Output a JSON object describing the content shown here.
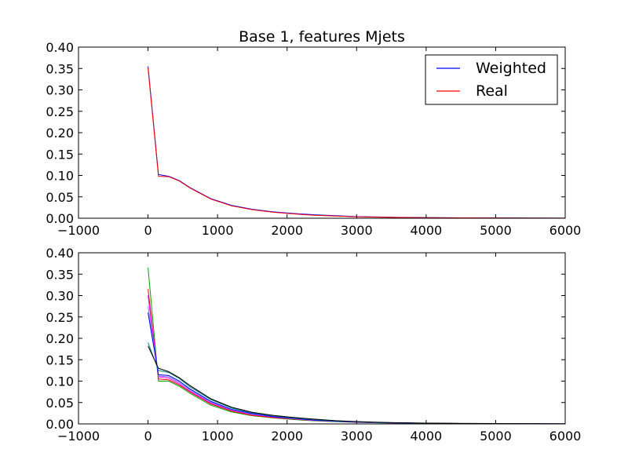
{
  "chart_data": [
    {
      "type": "line",
      "title": "Base 1, features Mjets",
      "xlabel": "",
      "ylabel": "",
      "xlim": [
        -1000,
        6000
      ],
      "ylim": [
        0,
        0.4
      ],
      "xticks": [
        -1000,
        0,
        1000,
        2000,
        3000,
        4000,
        5000,
        6000
      ],
      "xtick_labels": [
        "−1000",
        "0",
        "1000",
        "2000",
        "3000",
        "4000",
        "5000",
        "6000"
      ],
      "yticks": [
        0,
        0.05,
        0.1,
        0.15,
        0.2,
        0.25,
        0.3,
        0.35,
        0.4
      ],
      "ytick_labels": [
        "0.00",
        "0.05",
        "0.10",
        "0.15",
        "0.20",
        "0.25",
        "0.30",
        "0.35",
        "0.40"
      ],
      "grid": false,
      "legend": {
        "position": "top-right",
        "entries": [
          {
            "label": "Weighted",
            "color": "#0000ff"
          },
          {
            "label": "Real",
            "color": "#ff0000"
          }
        ]
      },
      "series": [
        {
          "name": "Weighted",
          "color": "#0000ff",
          "x": [
            0,
            150,
            300,
            450,
            600,
            900,
            1200,
            1500,
            1800,
            2100,
            2400,
            2700,
            3000,
            3300,
            3600,
            4000,
            4500,
            5000,
            5500,
            6000
          ],
          "y": [
            0.355,
            0.102,
            0.098,
            0.088,
            0.072,
            0.046,
            0.03,
            0.021,
            0.015,
            0.011,
            0.008,
            0.006,
            0.004,
            0.003,
            0.002,
            0.0015,
            0.001,
            0.0007,
            0.0005,
            0.0003
          ]
        },
        {
          "name": "Real",
          "color": "#ff0000",
          "x": [
            0,
            150,
            300,
            450,
            600,
            900,
            1200,
            1500,
            1800,
            2100,
            2400,
            2700,
            3000,
            3300,
            3600,
            4000,
            4500,
            5000,
            5500,
            6000
          ],
          "y": [
            0.351,
            0.098,
            0.097,
            0.087,
            0.071,
            0.045,
            0.029,
            0.02,
            0.014,
            0.01,
            0.007,
            0.005,
            0.0035,
            0.0025,
            0.0018,
            0.0012,
            0.0008,
            0.0006,
            0.0004,
            0.0002
          ]
        }
      ]
    },
    {
      "type": "line",
      "title": "",
      "xlabel": "",
      "ylabel": "",
      "xlim": [
        -1000,
        6000
      ],
      "ylim": [
        0,
        0.4
      ],
      "xticks": [
        -1000,
        0,
        1000,
        2000,
        3000,
        4000,
        5000,
        6000
      ],
      "xtick_labels": [
        "−1000",
        "0",
        "1000",
        "2000",
        "3000",
        "4000",
        "5000",
        "6000"
      ],
      "yticks": [
        0,
        0.05,
        0.1,
        0.15,
        0.2,
        0.25,
        0.3,
        0.35,
        0.4
      ],
      "ytick_labels": [
        "0.00",
        "0.05",
        "0.10",
        "0.15",
        "0.20",
        "0.25",
        "0.30",
        "0.35",
        "0.40"
      ],
      "grid": false,
      "series": [
        {
          "color": "#00a000",
          "x": [
            0,
            150,
            300,
            450,
            600,
            900,
            1200,
            1500,
            1800,
            2100,
            2400,
            2700,
            3000,
            3300,
            3600,
            4000,
            4500,
            5000,
            5500,
            6000
          ],
          "y": [
            0.365,
            0.1,
            0.1,
            0.088,
            0.072,
            0.044,
            0.028,
            0.019,
            0.014,
            0.01,
            0.007,
            0.005,
            0.0035,
            0.0025,
            0.0018,
            0.0012,
            0.0008,
            0.0006,
            0.0004,
            0.0002
          ]
        },
        {
          "color": "#ff0000",
          "x": [
            0,
            150,
            300,
            450,
            600,
            900,
            1200,
            1500,
            1800,
            2100,
            2400,
            2700,
            3000,
            3300,
            3600,
            4000,
            4500,
            5000,
            5500,
            6000
          ],
          "y": [
            0.315,
            0.105,
            0.103,
            0.091,
            0.075,
            0.047,
            0.03,
            0.02,
            0.015,
            0.011,
            0.008,
            0.006,
            0.004,
            0.003,
            0.002,
            0.0014,
            0.0009,
            0.0006,
            0.0004,
            0.0002
          ]
        },
        {
          "color": "#ff00ff",
          "x": [
            0,
            150,
            300,
            450,
            600,
            900,
            1200,
            1500,
            1800,
            2100,
            2400,
            2700,
            3000,
            3300,
            3600,
            4000,
            4500,
            5000,
            5500,
            6000
          ],
          "y": [
            0.3,
            0.11,
            0.107,
            0.094,
            0.077,
            0.049,
            0.032,
            0.022,
            0.016,
            0.012,
            0.008,
            0.006,
            0.004,
            0.003,
            0.002,
            0.0014,
            0.0009,
            0.0006,
            0.0004,
            0.0002
          ]
        },
        {
          "color": "#8080ff",
          "x": [
            0,
            150,
            300,
            450,
            600,
            900,
            1200,
            1500,
            1800,
            2100,
            2400,
            2700,
            3000,
            3300,
            3600,
            4000,
            4500,
            5000,
            5500,
            6000
          ],
          "y": [
            0.275,
            0.112,
            0.11,
            0.097,
            0.08,
            0.051,
            0.033,
            0.023,
            0.017,
            0.012,
            0.009,
            0.006,
            0.0045,
            0.003,
            0.0022,
            0.0015,
            0.001,
            0.0007,
            0.0005,
            0.0003
          ]
        },
        {
          "color": "#0000ff",
          "x": [
            0,
            150,
            300,
            450,
            600,
            900,
            1200,
            1500,
            1800,
            2100,
            2400,
            2700,
            3000,
            3300,
            3600,
            4000,
            4500,
            5000,
            5500,
            6000
          ],
          "y": [
            0.26,
            0.115,
            0.113,
            0.1,
            0.082,
            0.053,
            0.034,
            0.024,
            0.017,
            0.013,
            0.009,
            0.0065,
            0.0045,
            0.0033,
            0.0023,
            0.0016,
            0.001,
            0.0007,
            0.0005,
            0.0003
          ]
        },
        {
          "color": "#008080",
          "x": [
            0,
            150,
            300,
            450,
            600,
            900,
            1200,
            1500,
            1800,
            2100,
            2400,
            2700,
            3000,
            3300,
            3600,
            4000,
            4500,
            5000,
            5500,
            6000
          ],
          "y": [
            0.19,
            0.125,
            0.12,
            0.106,
            0.087,
            0.057,
            0.037,
            0.026,
            0.019,
            0.014,
            0.01,
            0.007,
            0.005,
            0.0035,
            0.0025,
            0.0017,
            0.0011,
            0.0008,
            0.0005,
            0.0003
          ]
        },
        {
          "color": "#000000",
          "x": [
            0,
            150,
            300,
            450,
            600,
            900,
            1200,
            1500,
            1800,
            2100,
            2400,
            2700,
            3000,
            3300,
            3600,
            4000,
            4500,
            5000,
            5500,
            6000
          ],
          "y": [
            0.182,
            0.13,
            0.122,
            0.108,
            0.09,
            0.059,
            0.039,
            0.027,
            0.02,
            0.015,
            0.011,
            0.0075,
            0.0055,
            0.004,
            0.0028,
            0.0019,
            0.0012,
            0.0008,
            0.0005,
            0.0003
          ]
        }
      ]
    }
  ]
}
